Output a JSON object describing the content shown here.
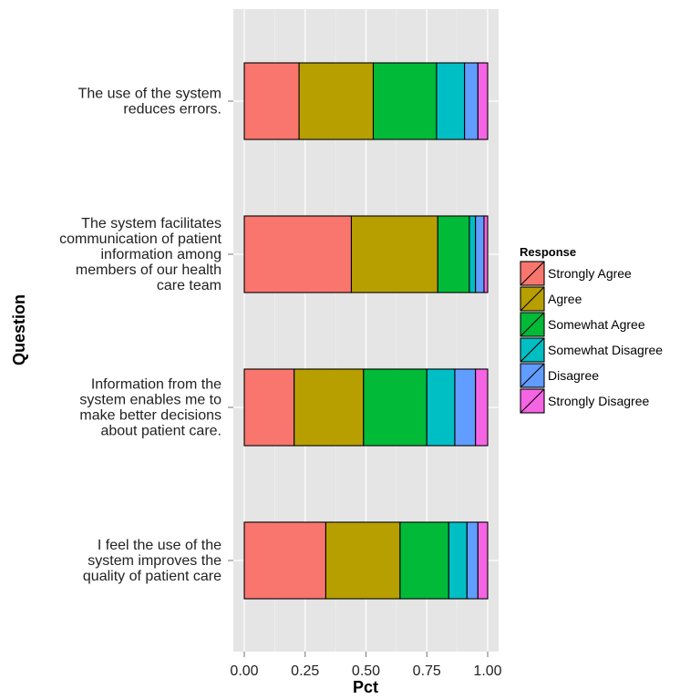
{
  "chart_data": {
    "type": "bar",
    "orientation": "horizontal",
    "stacked": true,
    "xlabel": "Pct",
    "ylabel": "Question",
    "xlim": [
      -0.05,
      1.05
    ],
    "xticks": [
      0,
      0.25,
      0.5,
      0.75,
      1
    ],
    "xtick_labels": [
      "0.00",
      "0.25",
      "0.50",
      "0.75",
      "1.00"
    ],
    "grid": true,
    "legend_position": "right",
    "legend_title": "Response",
    "categories": [
      "The use of the system reduces errors.",
      "The system facilitates communication of patient information among members of our health care team",
      "Information from the system enables me to make better decisions about patient care.",
      "I feel the use of the system improves the quality of patient care"
    ],
    "category_lines": [
      [
        "The use of the system",
        "reduces errors."
      ],
      [
        "The system facilitates",
        "communication of patient",
        "information among",
        "members of our health",
        "care team"
      ],
      [
        "Information from the",
        "system enables me to",
        "make better decisions",
        "about patient care."
      ],
      [
        "I feel the use of the",
        "system improves the",
        "quality of patient care"
      ]
    ],
    "series": [
      {
        "name": "Strongly Agree",
        "color": "#F8766D",
        "values": [
          0.225,
          0.44,
          0.205,
          0.335
        ]
      },
      {
        "name": "Agree",
        "color": "#B79F00",
        "values": [
          0.305,
          0.355,
          0.285,
          0.305
        ]
      },
      {
        "name": "Somewhat Agree",
        "color": "#00BA38",
        "values": [
          0.26,
          0.13,
          0.26,
          0.2
        ]
      },
      {
        "name": "Somewhat Disagree",
        "color": "#00BFC4",
        "values": [
          0.115,
          0.025,
          0.115,
          0.075
        ]
      },
      {
        "name": "Disagree",
        "color": "#619CFF",
        "values": [
          0.055,
          0.035,
          0.085,
          0.045
        ]
      },
      {
        "name": "Strongly Disagree",
        "color": "#F564E3",
        "values": [
          0.04,
          0.015,
          0.05,
          0.04
        ]
      }
    ]
  }
}
